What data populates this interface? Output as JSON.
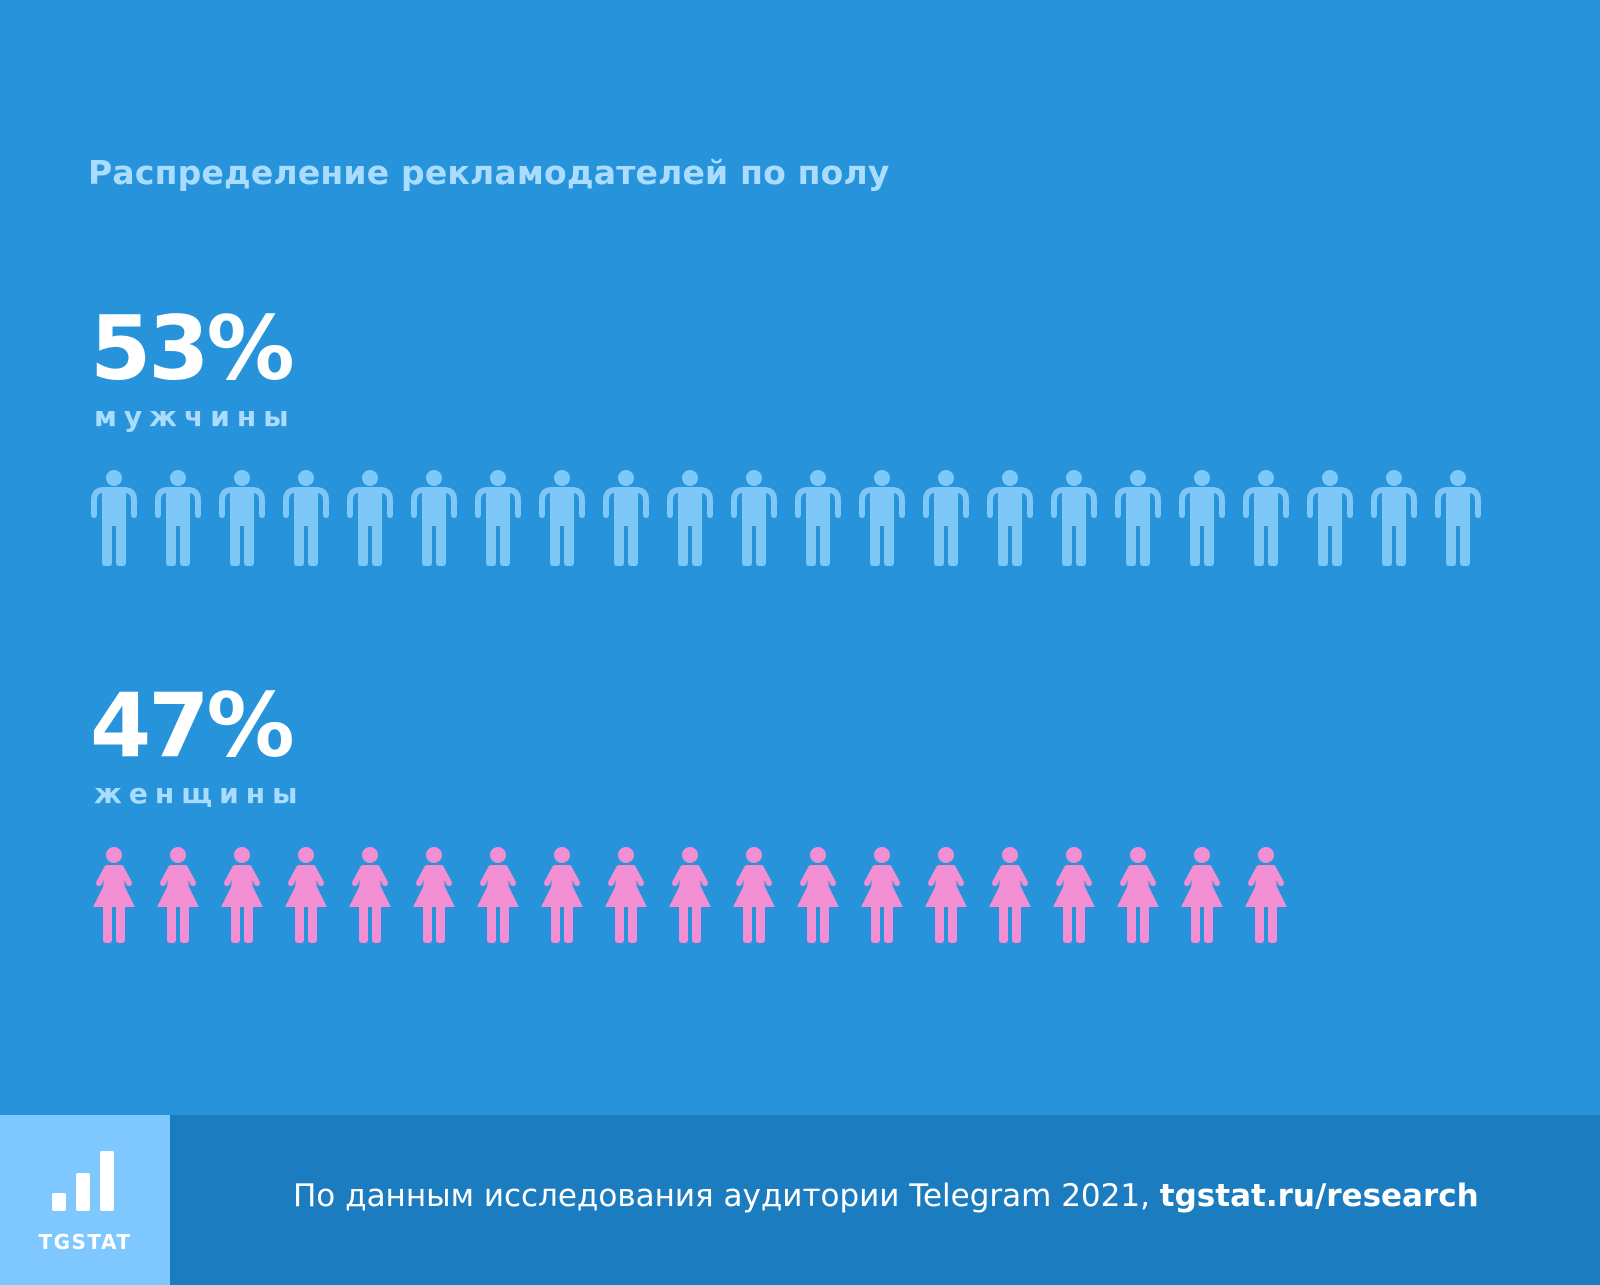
{
  "title": "Распределение рекламодателей по полу",
  "chart_data": {
    "type": "pictogram",
    "series": [
      {
        "name": "мужчины",
        "value_label": "53%",
        "value": 53,
        "icon": "man-icon",
        "icon_count": 22,
        "color": "#7ec8f8"
      },
      {
        "name": "женщины",
        "value_label": "47%",
        "value": 47,
        "icon": "woman-icon",
        "icon_count": 19,
        "color": "#f28fd3"
      }
    ]
  },
  "footer": {
    "logo_text": "TGSTAT",
    "logo_icon": "bar-chart-icon",
    "source_text": "По данным исследования аудитории Telegram 2021, ",
    "source_link": "tgstat.ru/research"
  }
}
